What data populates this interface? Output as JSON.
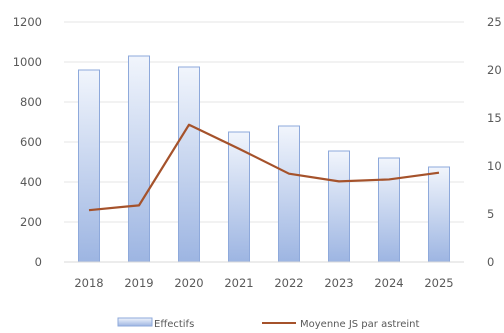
{
  "chart_data": {
    "type": "bar",
    "title": "",
    "xlabel": "",
    "ylabel": "",
    "categories": [
      "2018",
      "2019",
      "2020",
      "2021",
      "2022",
      "2023",
      "2024",
      "2025"
    ],
    "series": [
      {
        "name": "Effectifs",
        "type": "bar",
        "axis": "left",
        "values": [
          960,
          1030,
          975,
          650,
          680,
          555,
          520,
          475
        ],
        "color": "#8EA9DB"
      },
      {
        "name": "Moyenne JS par astreint",
        "type": "line",
        "axis": "right",
        "values": [
          5.4,
          5.9,
          14.3,
          11.8,
          9.2,
          8.4,
          8.6,
          9.3
        ],
        "color": "#A5522B"
      }
    ],
    "left_axis": {
      "ylim": [
        0,
        1200
      ],
      "ticks": [
        "0",
        "200",
        "400",
        "600",
        "800",
        "1000",
        "1200"
      ]
    },
    "right_axis": {
      "ylim": [
        0,
        25
      ],
      "ticks": [
        "0",
        "5",
        "10",
        "15",
        "20",
        "25"
      ]
    },
    "grid": true,
    "legend_position": "bottom"
  }
}
